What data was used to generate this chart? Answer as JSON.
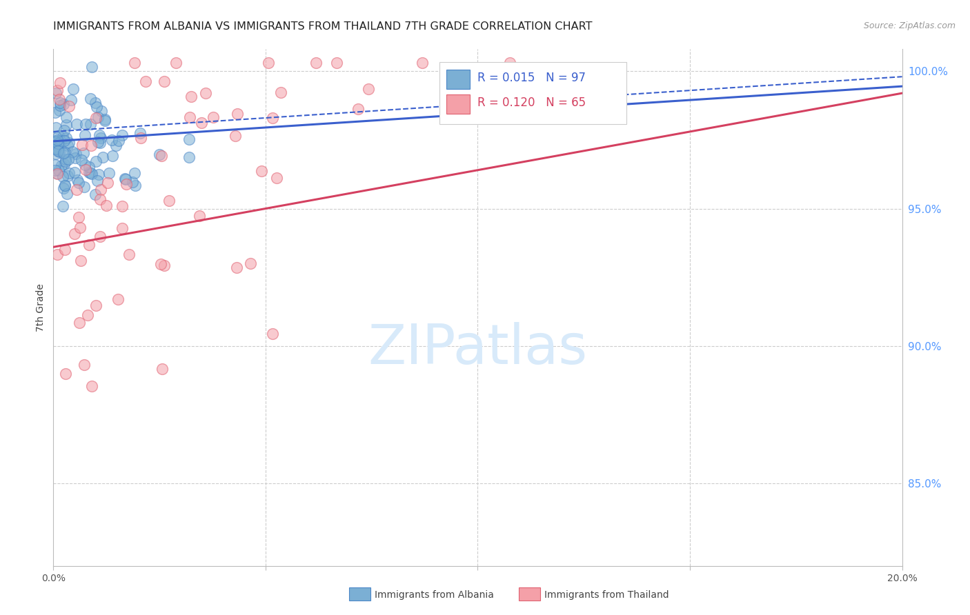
{
  "title": "IMMIGRANTS FROM ALBANIA VS IMMIGRANTS FROM THAILAND 7TH GRADE CORRELATION CHART",
  "source": "Source: ZipAtlas.com",
  "ylabel": "7th Grade",
  "xmin": 0.0,
  "xmax": 0.2,
  "ymin": 0.82,
  "ymax": 1.008,
  "albania_R": 0.015,
  "albania_N": 97,
  "thailand_R": 0.12,
  "thailand_N": 65,
  "albania_color": "#7BAFD4",
  "albania_edge_color": "#4A86C8",
  "thailand_color": "#F4A0A8",
  "thailand_edge_color": "#E06070",
  "regression_blue_color": "#3A5FCD",
  "regression_pink_color": "#D44060",
  "grid_color": "#CCCCCC",
  "right_tick_color": "#5599FF",
  "watermark_color": "#D8EAFA",
  "right_ytick_vals": [
    0.85,
    0.9,
    0.95,
    1.0
  ],
  "right_ytick_labels": [
    "85.0%",
    "90.0%",
    "95.0%",
    "100.0%"
  ],
  "xtick_vals": [
    0.0,
    0.05,
    0.1,
    0.15,
    0.2
  ],
  "xtick_labels_bottom": [
    "0.0%",
    "",
    "",
    "",
    "20.0%"
  ],
  "legend_entries": [
    {
      "R": "0.015",
      "N": "97",
      "color": "#3A5FCD"
    },
    {
      "R": "0.120",
      "N": "65",
      "color": "#D44060"
    }
  ],
  "bottom_legend": [
    "Immigrants from Albania",
    "Immigrants from Thailand"
  ],
  "watermark": "ZIPatlas"
}
